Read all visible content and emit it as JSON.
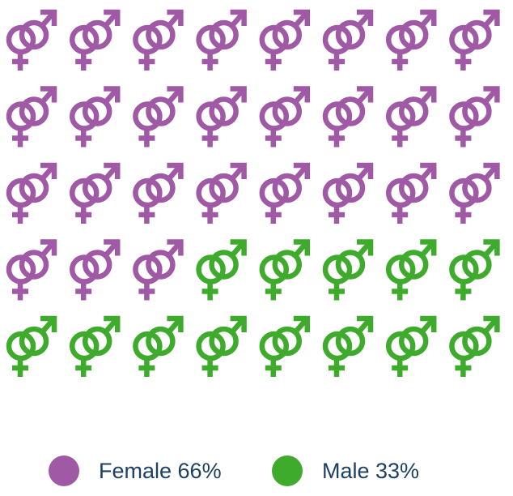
{
  "chart_data": {
    "type": "pictograph",
    "icon": "gender-symbol-icon",
    "rows": 5,
    "columns": 8,
    "total_icons": 40,
    "series": [
      {
        "name": "Female",
        "label": "Female 66%",
        "percent": 66,
        "icon_count": 27,
        "color": "#a05aa5"
      },
      {
        "name": "Male",
        "label": "Male 33%",
        "percent": 33,
        "icon_count": 13,
        "color": "#3fab2d"
      }
    ],
    "legend_position": "bottom"
  }
}
